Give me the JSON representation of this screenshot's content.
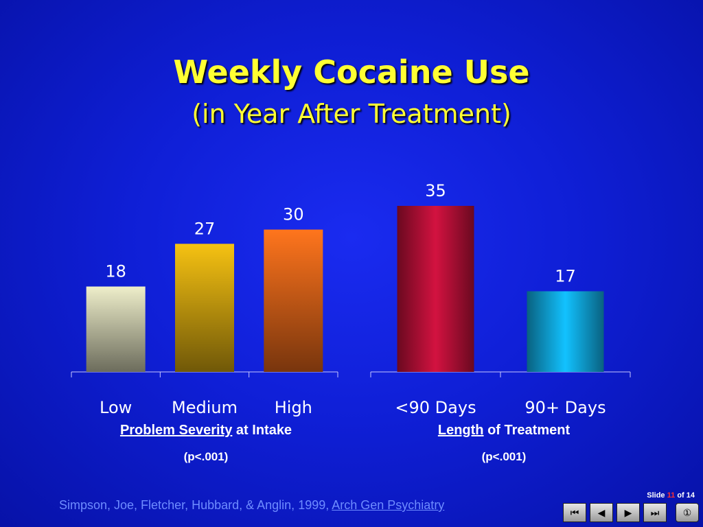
{
  "slide": {
    "title": "Weekly Cocaine Use",
    "subtitle": "(in Year After Treatment)",
    "footer_text": "Simpson, Joe, Fletcher, Hubbard, & Anglin, 1999, ",
    "footer_journal": "Arch Gen Psychiatry",
    "slide_label": "Slide",
    "slide_current": "11",
    "slide_of": "of 14"
  },
  "captions": {
    "left_underlined": "Problem Severity",
    "left_rest": " at Intake",
    "left_p": "(p<.001)",
    "right_underlined": "Length",
    "right_rest": " of Treatment",
    "right_p": "(p<.001)"
  },
  "nav": {
    "first": "⏮",
    "prev": "◀",
    "next": "▶",
    "last": "⏭",
    "home": "①"
  },
  "chart_data": [
    {
      "type": "bar",
      "categories": [
        "Low",
        "Medium",
        "High"
      ],
      "values": [
        18,
        27,
        30
      ],
      "colors": [
        "#d8d8b8",
        "#e0b010",
        "#f06a1a"
      ],
      "title": "",
      "xlabel": "Problem Severity at Intake",
      "ylabel": "",
      "ylim": [
        0,
        35
      ],
      "grid": false
    },
    {
      "type": "bar",
      "categories": [
        "<90 Days",
        "90+ Days"
      ],
      "values": [
        35,
        17
      ],
      "colors": [
        "#c0103a",
        "#10b0e8"
      ],
      "title": "",
      "xlabel": "Length of Treatment",
      "ylabel": "",
      "ylim": [
        0,
        35
      ],
      "grid": false
    }
  ]
}
